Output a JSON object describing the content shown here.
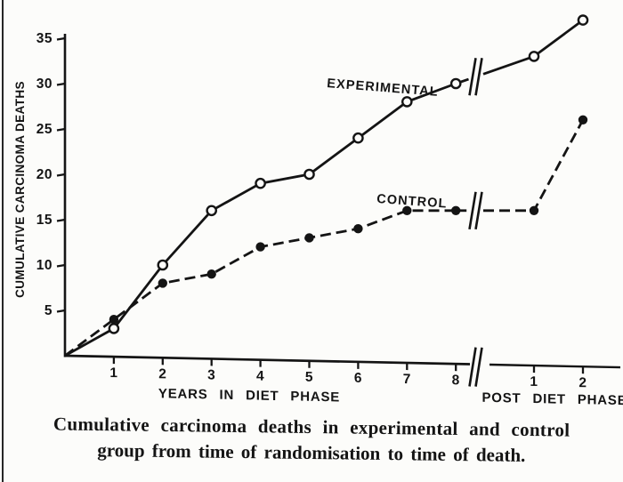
{
  "colors": {
    "ink": "#141414",
    "paper": "#fcfcfa"
  },
  "chart_data": {
    "type": "line",
    "title": "",
    "ylabel": "CUMULATIVE CARCINOMA DEATHS",
    "ylim": [
      0,
      37.5
    ],
    "yticks": [
      5,
      10,
      15,
      20,
      25,
      30,
      35
    ],
    "grid": false,
    "x_axis": {
      "diet_phase": {
        "label": "YEARS IN DIET PHASE",
        "ticks": [
          1,
          2,
          3,
          4,
          5,
          6,
          7,
          8
        ]
      },
      "post_phase": {
        "label": "POST DIET PHASE",
        "ticks": [
          1,
          2
        ]
      },
      "axis_break_between_phases": true
    },
    "series": [
      {
        "name": "EXPERIMENTAL",
        "line_style": "solid",
        "marker": "open-circle",
        "diet_phase": {
          "x": [
            0,
            1,
            2,
            3,
            4,
            5,
            6,
            7,
            8
          ],
          "y": [
            0,
            3,
            10,
            16,
            19,
            20,
            24,
            28,
            30
          ]
        },
        "post_phase": {
          "x": [
            1,
            2
          ],
          "y": [
            33,
            37
          ]
        }
      },
      {
        "name": "CONTROL",
        "line_style": "dashed",
        "marker": "filled-circle",
        "diet_phase": {
          "x": [
            0,
            1,
            2,
            3,
            4,
            5,
            6,
            7,
            8
          ],
          "y": [
            0,
            4,
            8,
            9,
            12,
            13,
            14,
            16,
            16
          ]
        },
        "post_phase": {
          "x": [
            1,
            2
          ],
          "y": [
            16,
            26
          ]
        }
      }
    ],
    "caption_line1": "Cumulative carcinoma deaths in experimental and control",
    "caption_line2": "group from time of randomisation to time of death."
  }
}
